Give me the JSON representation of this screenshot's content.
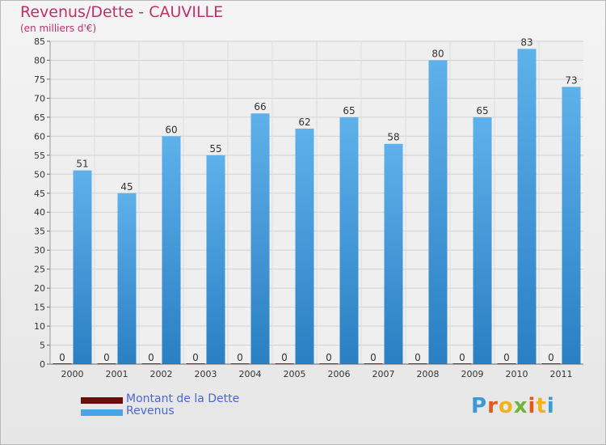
{
  "title": "Revenus/Dette - CAUVILLE",
  "subtitle": "(en milliers d'€)",
  "chart_data": {
    "type": "bar",
    "categories": [
      "2000",
      "2001",
      "2002",
      "2003",
      "2004",
      "2005",
      "2006",
      "2007",
      "2008",
      "2009",
      "2010",
      "2011"
    ],
    "series": [
      {
        "name": "Montant de la Dette",
        "values": [
          0,
          0,
          0,
          0,
          0,
          0,
          0,
          0,
          0,
          0,
          0,
          0
        ],
        "color": "#6b0d0d"
      },
      {
        "name": "Revenus",
        "values": [
          51,
          45,
          60,
          55,
          66,
          62,
          65,
          58,
          80,
          65,
          83,
          73
        ],
        "color": "#4aa3e4"
      }
    ],
    "ylim": [
      0,
      85
    ],
    "yticks": [
      0,
      5,
      10,
      15,
      20,
      25,
      30,
      35,
      40,
      45,
      50,
      55,
      60,
      65,
      70,
      75,
      80,
      85
    ],
    "grid": true,
    "legend_position": "bottom-left"
  },
  "logo_text": "Proxiti",
  "colors": {
    "title": "#c2306a",
    "legend_text": "#4a67d6",
    "axis_text": "#333333"
  }
}
